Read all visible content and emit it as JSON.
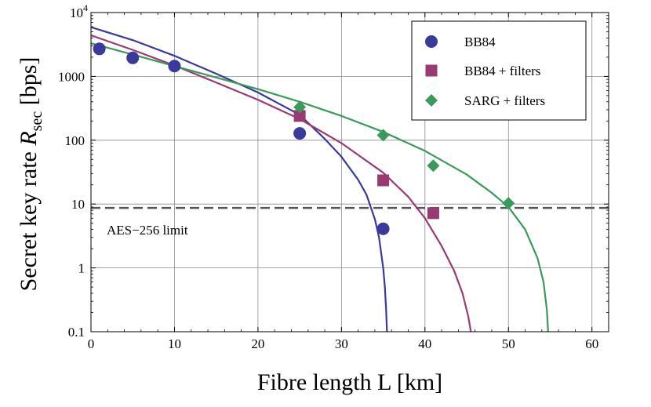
{
  "chart_data": {
    "type": "scatter",
    "xlabel": "Fibre length L [km]",
    "ylabel": {
      "main": "Secret key rate ",
      "var": "R",
      "sub": "sec",
      "unit": " [bps]"
    },
    "xlim": [
      0,
      62
    ],
    "ylim": [
      0.1,
      10000
    ],
    "yscale": "log",
    "grid": true,
    "legend_position": "top-right",
    "x_ticks": [
      "0",
      "10",
      "20",
      "30",
      "40",
      "50",
      "60"
    ],
    "y_ticks": [
      {
        "value": 0.1,
        "label": "0.1"
      },
      {
        "value": 1,
        "label": "1"
      },
      {
        "value": 10,
        "label": "10"
      },
      {
        "value": 100,
        "label": "100"
      },
      {
        "value": 1000,
        "label": "1000"
      },
      {
        "value": 10000,
        "label": "10",
        "exp": "4"
      }
    ],
    "series": [
      {
        "name": "BB84",
        "color": "#3a3a9a",
        "marker": "circle",
        "points": [
          [
            1,
            2700
          ],
          [
            5,
            1950
          ],
          [
            10,
            1450
          ],
          [
            25,
            128
          ],
          [
            35,
            4.1
          ]
        ],
        "curve": [
          [
            0,
            5900
          ],
          [
            5,
            3700
          ],
          [
            10,
            2100
          ],
          [
            15,
            1100
          ],
          [
            20,
            560
          ],
          [
            25,
            250
          ],
          [
            28,
            105
          ],
          [
            30,
            55
          ],
          [
            32,
            24
          ],
          [
            33,
            14
          ],
          [
            34,
            5.8
          ],
          [
            34.5,
            3
          ],
          [
            35,
            1
          ],
          [
            35.2,
            0.5
          ],
          [
            35.35,
            0.22
          ],
          [
            35.45,
            0.1
          ]
        ]
      },
      {
        "name": "BB84 + filters",
        "color": "#9a3a72",
        "marker": "square",
        "points": [
          [
            25,
            240
          ],
          [
            35,
            23.5
          ],
          [
            41,
            7.2
          ]
        ],
        "curve": [
          [
            0,
            4400
          ],
          [
            5,
            2600
          ],
          [
            10,
            1480
          ],
          [
            15,
            800
          ],
          [
            20,
            430
          ],
          [
            25,
            215
          ],
          [
            30,
            90
          ],
          [
            35,
            31
          ],
          [
            38,
            13
          ],
          [
            40,
            6
          ],
          [
            42,
            2.2
          ],
          [
            43.5,
            0.9
          ],
          [
            44.5,
            0.4
          ],
          [
            45.2,
            0.17
          ],
          [
            45.5,
            0.1
          ]
        ]
      },
      {
        "name": "SARG + filters",
        "color": "#3a9a5a",
        "marker": "diamond",
        "points": [
          [
            25,
            330
          ],
          [
            35,
            120
          ],
          [
            41,
            40
          ],
          [
            50,
            10.3
          ]
        ],
        "curve": [
          [
            0,
            3300
          ],
          [
            5,
            2200
          ],
          [
            10,
            1450
          ],
          [
            15,
            960
          ],
          [
            20,
            630
          ],
          [
            25,
            400
          ],
          [
            30,
            240
          ],
          [
            35,
            135
          ],
          [
            40,
            68
          ],
          [
            45,
            29
          ],
          [
            48,
            15
          ],
          [
            50,
            9
          ],
          [
            52,
            4
          ],
          [
            53.5,
            1.4
          ],
          [
            54.2,
            0.6
          ],
          [
            54.6,
            0.22
          ],
          [
            54.75,
            0.1
          ]
        ]
      }
    ],
    "reference_line": {
      "label": "AES−256 limit",
      "y": 8.7,
      "style": "dashed",
      "color": "#555555"
    }
  }
}
